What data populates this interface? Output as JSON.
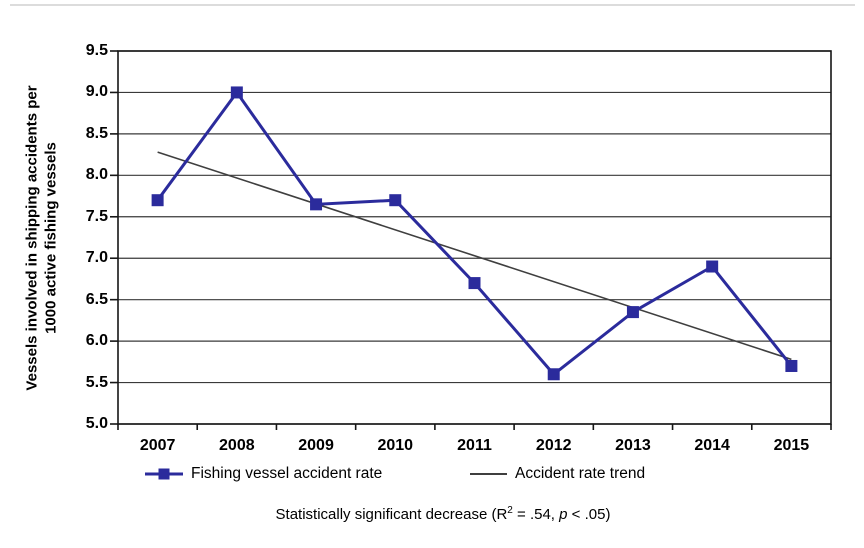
{
  "chart_data": {
    "type": "line",
    "categories": [
      "2007",
      "2008",
      "2009",
      "2010",
      "2011",
      "2012",
      "2013",
      "2014",
      "2015"
    ],
    "series": [
      {
        "name": "Fishing vessel accident rate",
        "values": [
          7.7,
          9.0,
          7.65,
          7.7,
          6.7,
          5.6,
          6.35,
          6.9,
          5.7
        ],
        "color": "#2b2b9c",
        "marker": "square"
      },
      {
        "name": "Accident rate trend",
        "type": "linear-trend",
        "start_value": 8.28,
        "end_value": 5.78,
        "color": "#3f3f3f"
      }
    ],
    "ylabel_line1": "Vessels involved in shipping accidents per",
    "ylabel_line2": "1000 active fishing vessels",
    "xlabel": "",
    "ylim": [
      5.0,
      9.5
    ],
    "ytick_labels": [
      "9.5",
      "9.0",
      "8.5",
      "8.0",
      "7.5",
      "7.0",
      "6.5",
      "6.0",
      "5.5",
      "5.0"
    ],
    "grid": true,
    "legend_position": "bottom"
  },
  "legend": {
    "series1_label": "Fishing vessel accident rate",
    "series2_label": "Accident rate trend"
  },
  "caption": {
    "prefix": "Statistically significant decrease (R",
    "superscript": "2",
    "equals": " = .54, ",
    "p_symbol": "p",
    "suffix": " < .05)"
  }
}
